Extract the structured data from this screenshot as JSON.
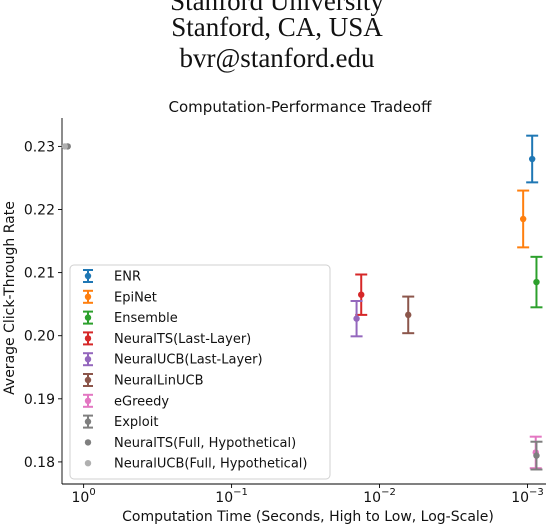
{
  "header": {
    "line1": "Stanford University",
    "line2": "Stanford, CA, USA",
    "line3": "bvr@stanford.edu"
  },
  "chart_data": {
    "type": "scatter",
    "title": "Computation-Performance Tradeoff",
    "xlabel": "Computation Time (Seconds, High to Low, Log-Scale)",
    "ylabel": "Average Click-Through Rate",
    "x_scale": "log",
    "x_inverted": true,
    "xlim": [
      1.4,
      0.00075
    ],
    "ylim": [
      0.1765,
      0.2345
    ],
    "x_ticks": [
      {
        "value": 1,
        "label": "10^0"
      },
      {
        "value": 0.1,
        "label": "10^-1"
      },
      {
        "value": 0.01,
        "label": "10^-2"
      },
      {
        "value": 0.001,
        "label": "10^-3"
      }
    ],
    "y_ticks": [
      0.18,
      0.19,
      0.2,
      0.21,
      0.22,
      0.23
    ],
    "grid": false,
    "legend_position": "lower-left",
    "series": [
      {
        "name": "ENR",
        "color": "#1f77b4",
        "x": 0.00093,
        "y": 0.228,
        "err": 0.0037
      },
      {
        "name": "EpiNet",
        "color": "#ff7f0e",
        "x": 0.00107,
        "y": 0.2185,
        "err": 0.0045
      },
      {
        "name": "Ensemble",
        "color": "#2ca02c",
        "x": 0.00087,
        "y": 0.2085,
        "err": 0.004
      },
      {
        "name": "NeuralTS(Last-Layer)",
        "color": "#d62728",
        "x": 0.0133,
        "y": 0.2065,
        "err": 0.0032
      },
      {
        "name": "NeuralUCB(Last-Layer)",
        "color": "#9467bd",
        "x": 0.0143,
        "y": 0.2027,
        "err": 0.0028
      },
      {
        "name": "NeuralLinUCB",
        "color": "#8c564b",
        "x": 0.0064,
        "y": 0.2033,
        "err": 0.0029
      },
      {
        "name": "eGreedy",
        "color": "#e377c2",
        "x": 0.00088,
        "y": 0.1815,
        "err": 0.0025
      },
      {
        "name": "Exploit",
        "color": "#7f7f7f",
        "x": 0.00087,
        "y": 0.181,
        "err": 0.0022
      },
      {
        "name": "NeuralTS(Full, Hypothetical)",
        "color": "#7f7f7f",
        "x": 1.28,
        "y": 0.23,
        "err": 0
      },
      {
        "name": "NeuralUCB(Full, Hypothetical)",
        "color": "#b0b0b0",
        "x": 1.34,
        "y": 0.23,
        "err": 0
      }
    ]
  }
}
